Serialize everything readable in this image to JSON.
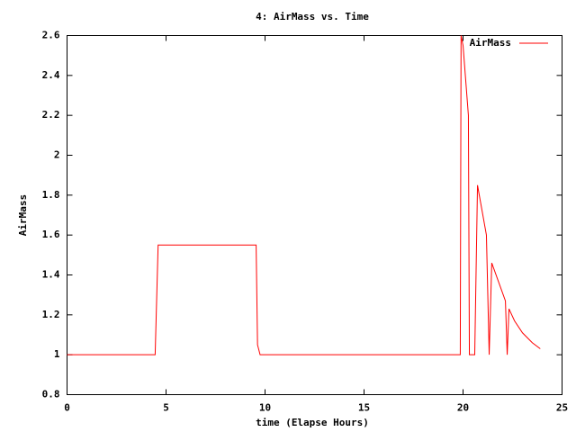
{
  "chart_data": {
    "type": "line",
    "title": "4: AirMass vs. Time",
    "xlabel": "time (Elapse Hours)",
    "ylabel": "AirMass",
    "x": [
      0,
      4.45,
      4.6,
      9.55,
      9.62,
      9.75,
      19.86,
      19.9,
      20.0,
      20.27,
      20.32,
      20.41,
      20.59,
      20.73,
      21.18,
      21.32,
      21.45,
      22.14,
      22.23,
      22.32,
      22.6,
      23.0,
      23.5,
      23.9
    ],
    "series": [
      {
        "name": "AirMass",
        "color": "#ff0000",
        "values": [
          1,
          1,
          1.55,
          1.55,
          1.05,
          1,
          1,
          2.6,
          2.55,
          2.2,
          1,
          1,
          1,
          1.85,
          1.6,
          1,
          1.46,
          1.27,
          1,
          1.23,
          1.17,
          1.11,
          1.06,
          1.03
        ]
      }
    ],
    "xlim": [
      0,
      25
    ],
    "xticks": [
      0,
      5,
      10,
      15,
      20,
      25
    ],
    "ylim": [
      0.8,
      2.6
    ],
    "yticks": [
      0.8,
      1,
      1.2,
      1.4,
      1.6,
      1.8,
      2,
      2.2,
      2.4,
      2.6
    ],
    "grid": false,
    "legend": "top-right"
  }
}
